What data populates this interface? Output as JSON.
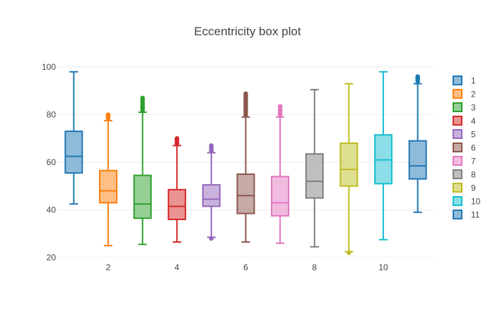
{
  "chart_data": {
    "type": "box",
    "title": "Eccentricity box plot",
    "xlabel": "",
    "ylabel": "",
    "ylim": [
      20,
      100
    ],
    "y_ticks": [
      20,
      40,
      60,
      80,
      100
    ],
    "x_ticks": [
      2,
      4,
      6,
      8,
      10
    ],
    "grid": true,
    "legend_position": "right",
    "series": [
      {
        "name": "1",
        "color": "#1f77b4",
        "lowerfence": 42.5,
        "q1": 55.5,
        "median": 62.5,
        "q3": 73.0,
        "upperfence": 98.0,
        "outliers": []
      },
      {
        "name": "2",
        "color": "#ff7f0e",
        "lowerfence": 25.0,
        "q1": 43.0,
        "median": 48.0,
        "q3": 56.5,
        "upperfence": 77.5,
        "outliers": [
          78.5,
          79.0,
          79.5,
          80.0
        ]
      },
      {
        "name": "3",
        "color": "#2ca02c",
        "lowerfence": 25.5,
        "q1": 36.5,
        "median": 42.5,
        "q3": 54.5,
        "upperfence": 81.0,
        "outliers": [
          81.8,
          82.5,
          83.2,
          84.0,
          84.8,
          85.5,
          86.3,
          87.0
        ]
      },
      {
        "name": "4",
        "color": "#d62728",
        "lowerfence": 26.5,
        "q1": 36.0,
        "median": 41.5,
        "q3": 48.5,
        "upperfence": 67.0,
        "outliers": [
          67.8,
          68.5,
          69.3,
          70.0
        ]
      },
      {
        "name": "5",
        "color": "#9467bd",
        "lowerfence": 28.5,
        "q1": 41.5,
        "median": 44.5,
        "q3": 50.5,
        "upperfence": 64.0,
        "outliers": [
          28.0,
          64.8,
          65.5,
          66.3,
          67.0
        ]
      },
      {
        "name": "6",
        "color": "#8c564b",
        "lowerfence": 26.5,
        "q1": 38.5,
        "median": 46.0,
        "q3": 55.0,
        "upperfence": 79.0,
        "outliers": [
          79.8,
          80.5,
          81.3,
          82.0,
          82.8,
          83.5,
          84.3,
          85.0,
          85.8,
          86.5,
          87.3,
          88.0,
          88.8
        ]
      },
      {
        "name": "7",
        "color": "#e377c2",
        "lowerfence": 26.0,
        "q1": 37.5,
        "median": 43.0,
        "q3": 54.0,
        "upperfence": 79.0,
        "outliers": [
          79.8,
          80.5,
          81.3,
          82.0,
          82.8,
          83.5
        ]
      },
      {
        "name": "8",
        "color": "#7f7f7f",
        "lowerfence": 24.5,
        "q1": 45.0,
        "median": 52.0,
        "q3": 63.5,
        "upperfence": 90.5,
        "outliers": []
      },
      {
        "name": "9",
        "color": "#bcbd22",
        "lowerfence": 22.5,
        "q1": 50.0,
        "median": 57.0,
        "q3": 68.0,
        "upperfence": 93.0,
        "outliers": [
          22.0
        ]
      },
      {
        "name": "10",
        "color": "#17becf",
        "lowerfence": 27.5,
        "q1": 51.0,
        "median": 61.0,
        "q3": 71.5,
        "upperfence": 98.0,
        "outliers": []
      },
      {
        "name": "11",
        "color": "#1f77b4",
        "lowerfence": 39.0,
        "q1": 53.0,
        "median": 58.5,
        "q3": 69.0,
        "upperfence": 93.0,
        "outliers": [
          94.0,
          94.8,
          95.5,
          96.0
        ]
      }
    ]
  }
}
